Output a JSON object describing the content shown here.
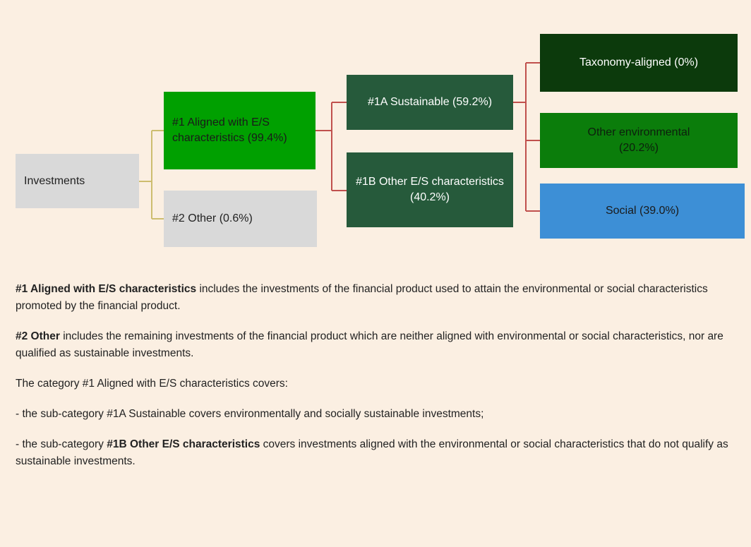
{
  "nodes": [
    {
      "label": "Investments"
    },
    {
      "label": "#1 Aligned with E/S characteristics (99.4%)"
    },
    {
      "label": "#2 Other (0.6%)"
    },
    {
      "label": "#1A Sustainable (59.2%)"
    },
    {
      "label": "#1B Other E/S characteristics (40.2%)"
    },
    {
      "label": "Taxonomy-aligned (0%)"
    },
    {
      "label": "Other environmental (20.2%)"
    },
    {
      "label": "Social (39.0%)"
    }
  ],
  "paragraphs": [
    {
      "segments": [
        {
          "text": "#1 Aligned with E/S characteristics",
          "bold": true
        },
        {
          "text": " includes the investments of the financial product used to attain the environmental or social characteristics promoted by the financial product.",
          "bold": false
        }
      ]
    },
    {
      "segments": [
        {
          "text": "#2 Other",
          "bold": true
        },
        {
          "text": " includes the remaining investments of the financial product which are neither aligned with environmental or social characteristics, nor are qualified as sustainable investments.",
          "bold": false
        }
      ]
    },
    {
      "segments": [
        {
          "text": "The category #1 Aligned with E/S characteristics covers:",
          "bold": false
        }
      ]
    },
    {
      "segments": [
        {
          "text": "- the sub-category #1A Sustainable covers environmentally and socially sustainable investments;",
          "bold": false
        }
      ]
    },
    {
      "segments": [
        {
          "text": "- the sub-category ",
          "bold": false
        },
        {
          "text": "#1B Other E/S characteristics",
          "bold": true
        },
        {
          "text": " covers investments aligned with the environmental or social characteristics that do not qualify as sustainable investments.",
          "bold": false
        }
      ]
    }
  ]
}
